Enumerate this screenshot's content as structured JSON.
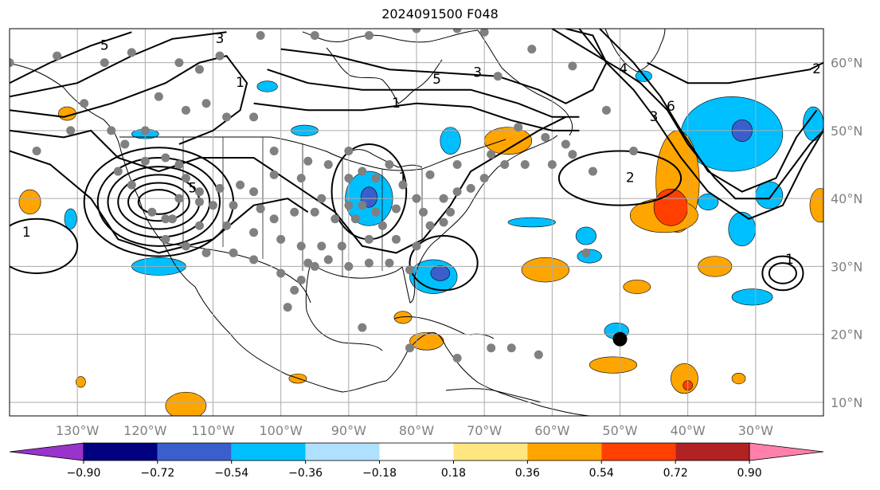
{
  "title": "2024091500 F048",
  "map": {
    "projection": "equirectangular",
    "lon_range": [
      -140,
      -20
    ],
    "lat_range": [
      8,
      65
    ],
    "lon_ticks": [
      {
        "lon": -130,
        "label": "130°W"
      },
      {
        "lon": -120,
        "label": "120°W"
      },
      {
        "lon": -110,
        "label": "110°W"
      },
      {
        "lon": -100,
        "label": "100°W"
      },
      {
        "lon": -90,
        "label": "90°W"
      },
      {
        "lon": -80,
        "label": "80°W"
      },
      {
        "lon": -70,
        "label": "70°W"
      },
      {
        "lon": -60,
        "label": "60°W"
      },
      {
        "lon": -50,
        "label": "50°W"
      },
      {
        "lon": -40,
        "label": "40°W"
      },
      {
        "lon": -30,
        "label": "30°W"
      }
    ],
    "lat_ticks": [
      {
        "lat": 60,
        "label": "60°N"
      },
      {
        "lat": 50,
        "label": "50°N"
      },
      {
        "lat": 40,
        "label": "40°N"
      },
      {
        "lat": 30,
        "label": "30°N"
      },
      {
        "lat": 20,
        "label": "20°N"
      },
      {
        "lat": 10,
        "label": "10°N"
      }
    ],
    "gridlines": true,
    "colors": {
      "grid": "#aaaaaa",
      "tick_label": "#808080",
      "coast": "#000000",
      "station": "#808080"
    }
  },
  "colorbar": {
    "labels": [
      "−0.90",
      "−0.72",
      "−0.54",
      "−0.36",
      "−0.18",
      "0.18",
      "0.36",
      "0.54",
      "0.72",
      "0.90"
    ],
    "colors": [
      "#9933cc",
      "#000080",
      "#3a5fcd",
      "#00bfff",
      "#b0e0ff",
      "#ffffff",
      "#ffe680",
      "#ffa500",
      "#ff4000",
      "#b22222",
      "#ff80aa"
    ],
    "extend": "both"
  },
  "shading": [
    {
      "lon": -33.5,
      "lat": 49.5,
      "rx": 7.5,
      "ry": 5.5,
      "color": "#00bfff"
    },
    {
      "lon": -32,
      "lat": 50,
      "rx": 1.5,
      "ry": 1.6,
      "color": "#3a5fcd"
    },
    {
      "lon": -21.5,
      "lat": 51,
      "rx": 1.5,
      "ry": 2.5,
      "color": "#00bfff"
    },
    {
      "lon": -41.5,
      "lat": 42.5,
      "rx": 3.2,
      "ry": 7.5,
      "color": "#ffa500"
    },
    {
      "lon": -43.5,
      "lat": 37.5,
      "rx": 5,
      "ry": 2.5,
      "color": "#ffa500"
    },
    {
      "lon": -42.5,
      "lat": 38.7,
      "rx": 2.5,
      "ry": 2.7,
      "color": "#ff4000"
    },
    {
      "lon": -87,
      "lat": 40,
      "rx": 3.5,
      "ry": 4,
      "color": "#00bfff"
    },
    {
      "lon": -87,
      "lat": 40.2,
      "rx": 1.2,
      "ry": 1.5,
      "color": "#3a5fcd"
    },
    {
      "lon": -77.5,
      "lat": 28.5,
      "rx": 3.5,
      "ry": 2.5,
      "color": "#00bfff"
    },
    {
      "lon": -76.5,
      "lat": 29,
      "rx": 1.4,
      "ry": 1.1,
      "color": "#3a5fcd"
    },
    {
      "lon": -66.5,
      "lat": 48.5,
      "rx": 3.5,
      "ry": 2,
      "color": "#ffa500"
    },
    {
      "lon": -61,
      "lat": 29.5,
      "rx": 3.5,
      "ry": 1.8,
      "color": "#ffa500"
    },
    {
      "lon": -36,
      "lat": 30,
      "rx": 2.5,
      "ry": 1.5,
      "color": "#ffa500"
    },
    {
      "lon": -30.5,
      "lat": 25.5,
      "rx": 3,
      "ry": 1.2,
      "color": "#00bfff"
    },
    {
      "lon": -47.5,
      "lat": 27,
      "rx": 2,
      "ry": 1,
      "color": "#ffa500"
    },
    {
      "lon": -54.5,
      "lat": 31.5,
      "rx": 1.8,
      "ry": 1,
      "color": "#00bfff"
    },
    {
      "lon": -50.5,
      "lat": 20.5,
      "rx": 1.8,
      "ry": 1.2,
      "color": "#00bfff"
    },
    {
      "lon": -51,
      "lat": 15.5,
      "rx": 3.5,
      "ry": 1.2,
      "color": "#ffa500"
    },
    {
      "lon": -40.5,
      "lat": 13.5,
      "rx": 2,
      "ry": 2.2,
      "color": "#ffa500"
    },
    {
      "lon": -40,
      "lat": 12.5,
      "rx": 0.7,
      "ry": 0.7,
      "color": "#ff4000"
    },
    {
      "lon": -114,
      "lat": 9.5,
      "rx": 3,
      "ry": 2,
      "color": "#ffa500"
    },
    {
      "lon": -118,
      "lat": 30,
      "rx": 4,
      "ry": 1.3,
      "color": "#00bfff"
    },
    {
      "lon": -137,
      "lat": 39.5,
      "rx": 1.6,
      "ry": 1.8,
      "color": "#ffa500"
    },
    {
      "lon": -131,
      "lat": 37,
      "rx": 0.9,
      "ry": 1.5,
      "color": "#00bfff"
    },
    {
      "lon": -20.5,
      "lat": 39,
      "rx": 1.5,
      "ry": 2.5,
      "color": "#ffa500"
    },
    {
      "lon": -75,
      "lat": 48.5,
      "rx": 1.5,
      "ry": 2,
      "color": "#00bfff"
    },
    {
      "lon": -78.5,
      "lat": 19,
      "rx": 2.5,
      "ry": 1.3,
      "color": "#ffa500"
    },
    {
      "lon": -82,
      "lat": 22.5,
      "rx": 1.3,
      "ry": 0.9,
      "color": "#ffa500"
    },
    {
      "lon": -63,
      "lat": 36.5,
      "rx": 3.5,
      "ry": 0.7,
      "color": "#00bfff"
    },
    {
      "lon": -55,
      "lat": 34.5,
      "rx": 1.5,
      "ry": 1.3,
      "color": "#00bfff"
    },
    {
      "lon": -32,
      "lat": 35.5,
      "rx": 2,
      "ry": 2.5,
      "color": "#00bfff"
    },
    {
      "lon": -28,
      "lat": 40.5,
      "rx": 2,
      "ry": 2,
      "color": "#00bfff"
    },
    {
      "lon": -37,
      "lat": 39.5,
      "rx": 1.5,
      "ry": 1.2,
      "color": "#00bfff"
    },
    {
      "lon": -102,
      "lat": 56.5,
      "rx": 1.5,
      "ry": 0.8,
      "color": "#00bfff"
    },
    {
      "lon": -96.5,
      "lat": 50,
      "rx": 2,
      "ry": 0.8,
      "color": "#00bfff"
    },
    {
      "lon": -120,
      "lat": 49.5,
      "rx": 2,
      "ry": 0.7,
      "color": "#00bfff"
    },
    {
      "lon": -131.5,
      "lat": 52.5,
      "rx": 1.3,
      "ry": 1,
      "color": "#ffa500"
    },
    {
      "lon": -97.5,
      "lat": 13.5,
      "rx": 1.3,
      "ry": 0.7,
      "color": "#ffa500"
    },
    {
      "lon": -129.5,
      "lat": 13,
      "rx": 0.7,
      "ry": 0.8,
      "color": "#ffa500"
    },
    {
      "lon": -32.5,
      "lat": 13.5,
      "rx": 1,
      "ry": 0.8,
      "color": "#ffa500"
    },
    {
      "lon": -46.5,
      "lat": 58,
      "rx": 1.2,
      "ry": 0.8,
      "color": "#00bfff"
    }
  ],
  "contours": [
    {
      "lon": -118,
      "lat": 39.5,
      "radii": [
        [
          11,
          8
        ],
        [
          9,
          6.5
        ],
        [
          7.5,
          5.2
        ],
        [
          6,
          4
        ],
        [
          4.5,
          2.8
        ],
        [
          3,
          1.8
        ]
      ],
      "label": "5",
      "label_lon": -113,
      "label_lat": 41.5
    },
    {
      "lon": -87,
      "lat": 41,
      "radii": [
        [
          5.5,
          7
        ]
      ],
      "label": "1",
      "label_lon": -82,
      "label_lat": 43
    },
    {
      "lon": -76,
      "lat": 30.5,
      "radii": [
        [
          5,
          4
        ]
      ],
      "label": "",
      "label_lon": 0,
      "label_lat": 0
    },
    {
      "lon": -50,
      "lat": 43,
      "radii": [
        [
          9,
          4
        ]
      ],
      "label": "2",
      "label_lon": -48.5,
      "label_lat": 43
    },
    {
      "lon": -26,
      "lat": 29,
      "radii": [
        [
          3,
          2.5
        ],
        [
          2,
          1.5
        ]
      ],
      "label": "1",
      "label_lon": -25,
      "label_lat": 31
    },
    {
      "lon": -136,
      "lat": 33,
      "radii": [
        [
          6,
          4
        ]
      ],
      "label": "1",
      "label_lon": -137.5,
      "label_lat": 35
    }
  ],
  "contour_lines": [
    {
      "label": "1",
      "label_lon": -106,
      "label_lat": 57,
      "points": [
        [
          -140,
          53
        ],
        [
          -132,
          52
        ],
        [
          -125,
          54
        ],
        [
          -117,
          57
        ],
        [
          -112,
          60
        ],
        [
          -108,
          61
        ],
        [
          -105,
          57
        ],
        [
          -106,
          53
        ],
        [
          -110,
          50
        ],
        [
          -115,
          48
        ]
      ]
    },
    {
      "label": "3",
      "label_lon": -109,
      "label_lat": 63.5,
      "points": [
        [
          -140,
          55
        ],
        [
          -130,
          57
        ],
        [
          -122,
          61
        ],
        [
          -116,
          63.5
        ],
        [
          -108,
          64.5
        ]
      ]
    },
    {
      "label": "5",
      "label_lon": -126,
      "label_lat": 62.5,
      "points": [
        [
          -140,
          57
        ],
        [
          -134,
          60
        ],
        [
          -128,
          62.5
        ],
        [
          -122,
          64.5
        ]
      ]
    },
    {
      "label": "",
      "label_lon": 0,
      "label_lat": 0,
      "points": [
        [
          -140,
          50
        ],
        [
          -132,
          49
        ],
        [
          -128,
          50
        ],
        [
          -124,
          46
        ],
        [
          -118,
          44
        ],
        [
          -112,
          46
        ],
        [
          -104,
          46
        ],
        [
          -98,
          42
        ],
        [
          -92,
          38
        ],
        [
          -88,
          33
        ],
        [
          -83,
          32
        ],
        [
          -79,
          34
        ],
        [
          -75,
          39
        ],
        [
          -72,
          44
        ],
        [
          -67,
          47
        ],
        [
          -62,
          50
        ],
        [
          -58,
          52
        ]
      ]
    },
    {
      "label": "",
      "label_lon": 0,
      "label_lat": 0,
      "points": [
        [
          -140,
          47
        ],
        [
          -134,
          45
        ],
        [
          -128,
          40
        ],
        [
          -124,
          34
        ],
        [
          -118,
          32
        ],
        [
          -110,
          34
        ],
        [
          -104,
          39
        ],
        [
          -99,
          40
        ],
        [
          -96,
          38
        ]
      ]
    },
    {
      "label": "3",
      "label_lon": -71,
      "label_lat": 58.5,
      "points": [
        [
          -100,
          62
        ],
        [
          -92,
          61
        ],
        [
          -84,
          59
        ],
        [
          -76,
          58.5
        ],
        [
          -68,
          58
        ],
        [
          -62,
          56
        ],
        [
          -58,
          54
        ],
        [
          -54,
          56
        ],
        [
          -52,
          60
        ],
        [
          -54,
          64
        ],
        [
          -58,
          65
        ]
      ]
    },
    {
      "label": "5",
      "label_lon": -77,
      "label_lat": 57.5,
      "points": [
        [
          -102,
          59
        ],
        [
          -96,
          57
        ],
        [
          -88,
          56
        ],
        [
          -80,
          56
        ],
        [
          -72,
          56
        ],
        [
          -65,
          54
        ],
        [
          -60,
          52
        ],
        [
          -56,
          52
        ]
      ]
    },
    {
      "label": "1",
      "label_lon": -83,
      "label_lat": 54,
      "points": [
        [
          -104,
          54
        ],
        [
          -96,
          53
        ],
        [
          -88,
          53
        ],
        [
          -80,
          54
        ],
        [
          -72,
          53.5
        ],
        [
          -66,
          51.5
        ],
        [
          -60,
          50
        ],
        [
          -56,
          50
        ]
      ]
    },
    {
      "label": "3",
      "label_lon": -45,
      "label_lat": 52,
      "points": [
        [
          -56,
          65
        ],
        [
          -52,
          60
        ],
        [
          -48,
          56
        ],
        [
          -45,
          52
        ],
        [
          -41,
          46
        ],
        [
          -37,
          41
        ],
        [
          -31,
          37
        ],
        [
          -26,
          39
        ],
        [
          -23,
          45
        ],
        [
          -20,
          50
        ]
      ]
    },
    {
      "label": "6",
      "label_lon": -42.5,
      "label_lat": 53.5,
      "points": [
        [
          -53,
          65
        ],
        [
          -48,
          60
        ],
        [
          -44,
          55
        ],
        [
          -41,
          50
        ],
        [
          -37,
          44
        ],
        [
          -32,
          41
        ],
        [
          -27,
          43
        ],
        [
          -24,
          49
        ],
        [
          -21,
          53
        ]
      ]
    },
    {
      "label": "2",
      "label_lon": -21,
      "label_lat": 59,
      "points": [
        [
          -46,
          60
        ],
        [
          -40,
          57
        ],
        [
          -34,
          57
        ],
        [
          -28,
          58
        ],
        [
          -22,
          59
        ],
        [
          -20,
          60
        ]
      ]
    },
    {
      "label": "4",
      "label_lon": -49.5,
      "label_lat": 59,
      "points": [
        [
          -60,
          65
        ],
        [
          -55,
          62
        ],
        [
          -50,
          59
        ],
        [
          -47,
          57
        ],
        [
          -43,
          53
        ],
        [
          -40,
          48
        ],
        [
          -36,
          43
        ],
        [
          -33,
          40
        ],
        [
          -28,
          40
        ],
        [
          -25,
          44
        ],
        [
          -22,
          48
        ],
        [
          -20,
          50
        ]
      ]
    }
  ],
  "stations": [
    [
      -140,
      60
    ],
    [
      -133,
      61
    ],
    [
      -126,
      60
    ],
    [
      -122,
      61.5
    ],
    [
      -115,
      60
    ],
    [
      -112,
      59
    ],
    [
      -109,
      61
    ],
    [
      -103,
      64
    ],
    [
      -95,
      64
    ],
    [
      -87,
      64
    ],
    [
      -80,
      65
    ],
    [
      -74,
      65
    ],
    [
      -70,
      64.5
    ],
    [
      -63,
      62
    ],
    [
      -57,
      59.5
    ],
    [
      -68,
      58
    ],
    [
      -52,
      53
    ],
    [
      -48,
      47
    ],
    [
      -58,
      48
    ],
    [
      -61,
      49
    ],
    [
      -65,
      50.5
    ],
    [
      -69,
      46.5
    ],
    [
      -74,
      45
    ],
    [
      -78,
      43.5
    ],
    [
      -82,
      42
    ],
    [
      -84,
      45
    ],
    [
      -88,
      44
    ],
    [
      -90,
      47
    ],
    [
      -93,
      45
    ],
    [
      -96,
      45.5
    ],
    [
      -101,
      47
    ],
    [
      -104,
      52
    ],
    [
      -108,
      52
    ],
    [
      -111,
      54
    ],
    [
      -114,
      53
    ],
    [
      -118,
      55
    ],
    [
      -120,
      50
    ],
    [
      -125,
      50
    ],
    [
      -129,
      54
    ],
    [
      -131,
      50
    ],
    [
      -136,
      47
    ],
    [
      -123,
      48
    ],
    [
      -120,
      45.5
    ],
    [
      -117,
      46
    ],
    [
      -114,
      43
    ],
    [
      -112,
      41
    ],
    [
      -109,
      41.5
    ],
    [
      -104,
      41
    ],
    [
      -101,
      43.5
    ],
    [
      -97,
      43
    ],
    [
      -94,
      40
    ],
    [
      -92,
      37
    ],
    [
      -89,
      37
    ],
    [
      -86,
      38
    ],
    [
      -83,
      38.5
    ],
    [
      -79,
      38
    ],
    [
      -76,
      40
    ],
    [
      -74,
      41
    ],
    [
      -72,
      41.5
    ],
    [
      -70,
      43
    ],
    [
      -67,
      45
    ],
    [
      -64,
      45
    ],
    [
      -60,
      45
    ],
    [
      -57,
      46.5
    ],
    [
      -54,
      44
    ],
    [
      -83,
      34
    ],
    [
      -80,
      33
    ],
    [
      -81,
      29.5
    ],
    [
      -84,
      30.5
    ],
    [
      -87,
      30.5
    ],
    [
      -90,
      30
    ],
    [
      -93,
      31
    ],
    [
      -95,
      30
    ],
    [
      -97,
      28
    ],
    [
      -100,
      29
    ],
    [
      -104,
      31
    ],
    [
      -107,
      32
    ],
    [
      -111,
      32
    ],
    [
      -114,
      33
    ],
    [
      -117,
      34
    ],
    [
      -119,
      38
    ],
    [
      -116,
      37
    ],
    [
      -112,
      36
    ],
    [
      -108,
      36
    ],
    [
      -104,
      35
    ],
    [
      -100,
      34
    ],
    [
      -97,
      33
    ],
    [
      -94,
      33
    ],
    [
      -91,
      33
    ],
    [
      -87,
      34
    ],
    [
      -85,
      36
    ],
    [
      -88,
      39
    ],
    [
      -90,
      39
    ],
    [
      -95,
      38
    ],
    [
      -98,
      38
    ],
    [
      -101,
      37
    ],
    [
      -107,
      39
    ],
    [
      -110,
      39
    ],
    [
      -112,
      39.5
    ],
    [
      -115,
      40
    ],
    [
      -103,
      38.5
    ],
    [
      -106,
      42
    ],
    [
      -115,
      45
    ],
    [
      -122,
      42
    ],
    [
      -124,
      44
    ],
    [
      -90,
      43
    ],
    [
      -86,
      43
    ],
    [
      -80,
      40
    ],
    [
      -78,
      36
    ],
    [
      -76,
      36.5
    ],
    [
      -75,
      38
    ],
    [
      -96,
      30.5
    ],
    [
      -98,
      26.5
    ],
    [
      -99,
      24
    ],
    [
      -88,
      21
    ],
    [
      -81,
      18
    ],
    [
      -74,
      16.5
    ],
    [
      -69,
      18
    ],
    [
      -66,
      18
    ],
    [
      -62,
      17
    ],
    [
      -55,
      32
    ],
    [
      -117,
      37
    ]
  ],
  "marker": {
    "lon": -50,
    "lat": 19.3,
    "color": "#000000"
  }
}
